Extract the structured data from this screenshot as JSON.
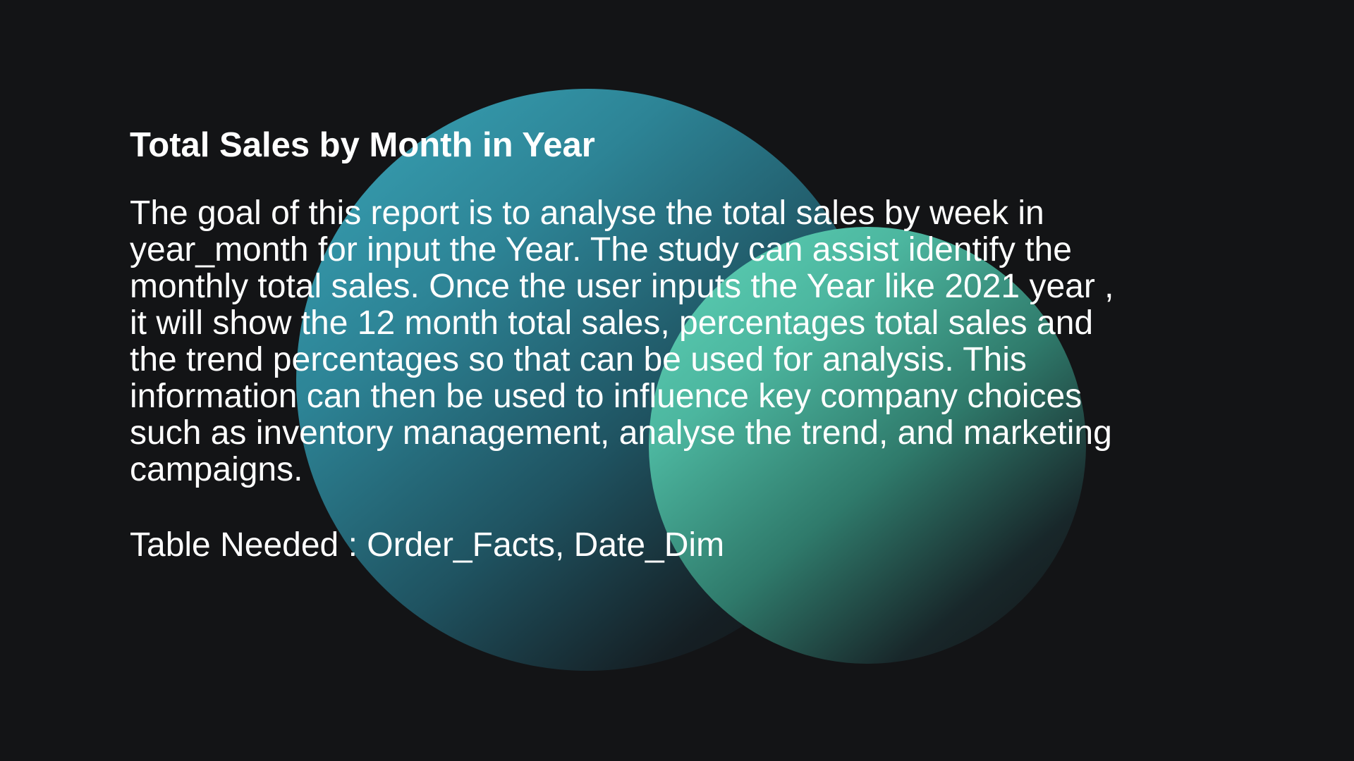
{
  "slide": {
    "title": "Total Sales by Month in Year",
    "description": "The goal of this report is to analyse the total sales by week in\nyear_month for input the Year. The study can assist identify the\nmonthly total sales. Once the user inputs the Year like 2021 year ,\nit will show the 12 month total sales, percentages total sales and\nthe trend percentages so that can  be used for analysis. This\ninformation can then be used to influence key company choices\nsuch as inventory management, analyse the trend, and marketing\ncampaigns.",
    "tables_needed": "Table Needed : Order_Facts, Date_Dim"
  },
  "colors": {
    "background": "#131416",
    "orb_large": "#3aa6b9",
    "orb_small": "#5fd5b9",
    "text": "#ffffff"
  }
}
